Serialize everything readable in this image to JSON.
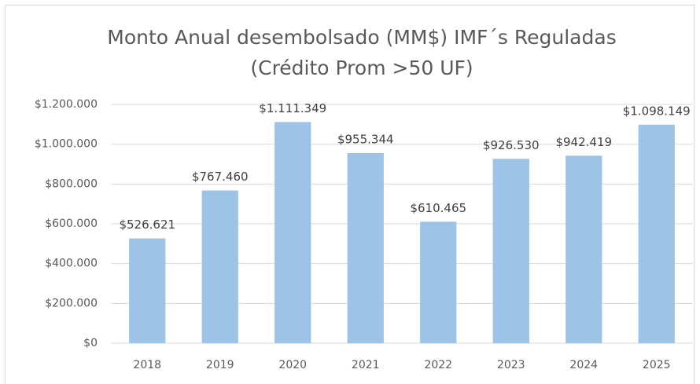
{
  "chart_data": {
    "type": "bar",
    "title": [
      "Monto Anual desembolsado (MM$) IMF´s Reguladas",
      "(Crédito Prom >50 UF)"
    ],
    "categories": [
      "2018",
      "2019",
      "2020",
      "2021",
      "2022",
      "2023",
      "2024",
      "2025"
    ],
    "values": [
      526621,
      767460,
      1111349,
      955344,
      610465,
      926530,
      942419,
      1098149
    ],
    "value_labels": [
      "$526.621",
      "$767.460",
      "$1.111.349",
      "$955.344",
      "$610.465",
      "$926.530",
      "$942.419",
      "$1.098.149"
    ],
    "color": "#9dc3e6",
    "ylim": [
      0,
      1200000
    ],
    "yticks": [
      {
        "value": 0,
        "label": "$0"
      },
      {
        "value": 200000,
        "label": "$200.000"
      },
      {
        "value": 400000,
        "label": "$400.000"
      },
      {
        "value": 600000,
        "label": "$600.000"
      },
      {
        "value": 800000,
        "label": "$800.000"
      },
      {
        "value": 1000000,
        "label": "$1.000.000"
      },
      {
        "value": 1200000,
        "label": "$1.200.000"
      }
    ],
    "grid": true
  }
}
